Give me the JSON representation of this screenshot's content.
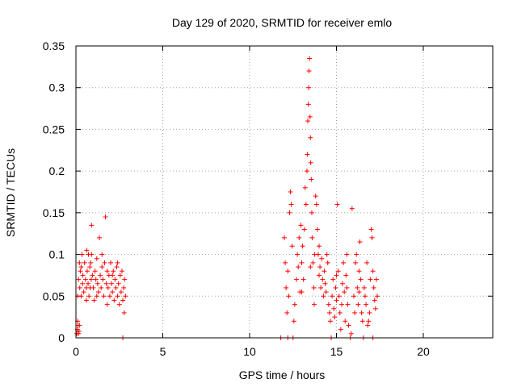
{
  "chart_data": {
    "type": "scatter",
    "title": "Day 129 of 2020, SRMTID for receiver emlo",
    "xlabel": "GPS time / hours",
    "ylabel": "SRMTID / TECUs",
    "xlim": [
      0,
      24
    ],
    "ylim": [
      0,
      0.35
    ],
    "xticks": [
      0,
      5,
      10,
      15,
      20
    ],
    "yticks": [
      0,
      0.05,
      0.1,
      0.15,
      0.2,
      0.25,
      0.3,
      0.35
    ],
    "xtick_labels": [
      "0",
      "5",
      "10",
      "15",
      "20"
    ],
    "ytick_labels": [
      "0",
      "0.05",
      "0.1",
      "0.15",
      "0.2",
      "0.25",
      "0.3",
      "0.35"
    ],
    "grid": true,
    "marker": "+",
    "color": "#ff0000",
    "series": [
      {
        "name": "SRMTID",
        "points": [
          [
            0.05,
            0.005
          ],
          [
            0.08,
            0.01
          ],
          [
            0.1,
            0.02
          ],
          [
            0.12,
            0.015
          ],
          [
            0.15,
            0.005
          ],
          [
            0.18,
            0.008
          ],
          [
            0.2,
            0.015
          ],
          [
            0.1,
            0.05
          ],
          [
            0.15,
            0.07
          ],
          [
            0.2,
            0.09
          ],
          [
            0.22,
            0.06
          ],
          [
            0.25,
            0.08
          ],
          [
            0.3,
            0.05
          ],
          [
            0.35,
            0.1
          ],
          [
            0.38,
            0.065
          ],
          [
            0.4,
            0.075
          ],
          [
            0.45,
            0.055
          ],
          [
            0.5,
            0.09
          ],
          [
            0.55,
            0.07
          ],
          [
            0.6,
            0.06
          ],
          [
            0.62,
            0.105
          ],
          [
            0.65,
            0.08
          ],
          [
            0.7,
            0.065
          ],
          [
            0.72,
            0.1
          ],
          [
            0.75,
            0.05
          ],
          [
            0.8,
            0.085
          ],
          [
            0.82,
            0.06
          ],
          [
            0.85,
            0.09
          ],
          [
            0.88,
            0.07
          ],
          [
            0.9,
            0.135
          ],
          [
            0.95,
            0.075
          ],
          [
            1.0,
            0.06
          ],
          [
            1.05,
            0.045
          ],
          [
            1.1,
            0.08
          ],
          [
            1.15,
            0.07
          ],
          [
            1.2,
            0.095
          ],
          [
            1.25,
            0.065
          ],
          [
            1.3,
            0.055
          ],
          [
            1.35,
            0.12
          ],
          [
            1.4,
            0.075
          ],
          [
            1.45,
            0.06
          ],
          [
            1.5,
            0.085
          ],
          [
            1.55,
            0.07
          ],
          [
            1.6,
            0.05
          ],
          [
            1.65,
            0.09
          ],
          [
            1.7,
            0.145
          ],
          [
            1.75,
            0.065
          ],
          [
            1.8,
            0.08
          ],
          [
            1.85,
            0.06
          ],
          [
            1.9,
            0.075
          ],
          [
            1.95,
            0.05
          ],
          [
            2.0,
            0.09
          ],
          [
            2.05,
            0.065
          ],
          [
            2.1,
            0.055
          ],
          [
            2.15,
            0.08
          ],
          [
            2.2,
            0.045
          ],
          [
            2.25,
            0.07
          ],
          [
            2.3,
            0.06
          ],
          [
            2.35,
            0.085
          ],
          [
            2.4,
            0.05
          ],
          [
            2.45,
            0.065
          ],
          [
            2.5,
            0.04
          ],
          [
            2.55,
            0.075
          ],
          [
            2.6,
            0.055
          ],
          [
            2.65,
            0.08
          ],
          [
            2.7,
            0.045
          ],
          [
            2.75,
            0.06
          ],
          [
            2.78,
            0.03
          ],
          [
            2.8,
            0.07
          ],
          [
            2.85,
            0.05
          ],
          [
            0.3,
            0.085
          ],
          [
            0.6,
            0.045
          ],
          [
            0.9,
            0.1
          ],
          [
            1.2,
            0.05
          ],
          [
            1.5,
            0.1
          ],
          [
            1.8,
            0.04
          ],
          [
            2.1,
            0.075
          ],
          [
            2.4,
            0.09
          ],
          [
            2.7,
            0.0
          ],
          [
            11.8,
            0.0
          ],
          [
            12.0,
            0.12
          ],
          [
            12.05,
            0.09
          ],
          [
            12.1,
            0.06
          ],
          [
            12.15,
            0.03
          ],
          [
            12.2,
            0.08
          ],
          [
            12.25,
            0.05
          ],
          [
            12.3,
            0.15
          ],
          [
            12.35,
            0.175
          ],
          [
            12.4,
            0.16
          ],
          [
            12.45,
            0.11
          ],
          [
            12.5,
            0.0
          ],
          [
            12.55,
            0.02
          ],
          [
            12.6,
            0.04
          ],
          [
            12.7,
            0.07
          ],
          [
            12.75,
            0.1
          ],
          [
            12.8,
            0.085
          ],
          [
            12.85,
            0.12
          ],
          [
            12.9,
            0.055
          ],
          [
            12.95,
            0.135
          ],
          [
            13.0,
            0.09
          ],
          [
            13.05,
            0.11
          ],
          [
            13.1,
            0.07
          ],
          [
            13.15,
            0.13
          ],
          [
            13.2,
            0.18
          ],
          [
            13.25,
            0.16
          ],
          [
            13.3,
            0.2
          ],
          [
            13.32,
            0.22
          ],
          [
            13.35,
            0.26
          ],
          [
            13.38,
            0.28
          ],
          [
            13.4,
            0.3
          ],
          [
            13.42,
            0.32
          ],
          [
            13.45,
            0.335
          ],
          [
            13.48,
            0.265
          ],
          [
            13.5,
            0.24
          ],
          [
            13.52,
            0.21
          ],
          [
            13.55,
            0.19
          ],
          [
            13.58,
            0.15
          ],
          [
            13.6,
            0.12
          ],
          [
            13.65,
            0.09
          ],
          [
            13.7,
            0.06
          ],
          [
            13.72,
            0.04
          ],
          [
            13.75,
            0.1
          ],
          [
            13.8,
            0.17
          ],
          [
            13.85,
            0.16
          ],
          [
            13.9,
            0.13
          ],
          [
            13.95,
            0.1
          ],
          [
            14.0,
            0.075
          ],
          [
            14.05,
            0.085
          ],
          [
            14.1,
            0.06
          ],
          [
            14.15,
            0.095
          ],
          [
            14.2,
            0.07
          ],
          [
            14.25,
            0.05
          ],
          [
            14.3,
            0.08
          ],
          [
            14.35,
            0.065
          ],
          [
            14.4,
            0.055
          ],
          [
            14.5,
            0.09
          ],
          [
            14.55,
            0.04
          ],
          [
            14.6,
            0.03
          ],
          [
            14.65,
            0.02
          ],
          [
            14.7,
            0.0
          ],
          [
            14.75,
            0.05
          ],
          [
            14.8,
            0.07
          ],
          [
            14.85,
            0.035
          ],
          [
            14.9,
            0.025
          ],
          [
            14.95,
            0.06
          ],
          [
            15.0,
            0.045
          ],
          [
            15.05,
            0.16
          ],
          [
            15.1,
            0.08
          ],
          [
            15.15,
            0.05
          ],
          [
            15.2,
            0.03
          ],
          [
            15.25,
            0.01
          ],
          [
            15.3,
            0.04
          ],
          [
            15.35,
            0.065
          ],
          [
            15.4,
            0.09
          ],
          [
            15.45,
            0.055
          ],
          [
            15.5,
            0.02
          ],
          [
            15.55,
            0.075
          ],
          [
            15.6,
            0.06
          ],
          [
            15.65,
            0.04
          ],
          [
            15.7,
            0.015
          ],
          [
            15.8,
            0.0
          ],
          [
            15.85,
            0.005
          ],
          [
            15.9,
            0.155
          ],
          [
            16.0,
            0.05
          ],
          [
            16.05,
            0.03
          ],
          [
            16.1,
            0.09
          ],
          [
            16.15,
            0.1
          ],
          [
            16.2,
            0.06
          ],
          [
            16.25,
            0.04
          ],
          [
            16.3,
            0.08
          ],
          [
            16.35,
            0.115
          ],
          [
            16.4,
            0.07
          ],
          [
            16.45,
            0.03
          ],
          [
            16.5,
            0.02
          ],
          [
            16.55,
            0.0
          ],
          [
            16.6,
            0.06
          ],
          [
            16.65,
            0.05
          ],
          [
            16.7,
            0.04
          ],
          [
            16.75,
            0.09
          ],
          [
            16.8,
            0.015
          ],
          [
            16.85,
            0.02
          ],
          [
            16.9,
            0.03
          ],
          [
            16.95,
            0.07
          ],
          [
            17.0,
            0.13
          ],
          [
            17.05,
            0.12
          ],
          [
            17.1,
            0.08
          ],
          [
            17.15,
            0.06
          ],
          [
            17.2,
            0.045
          ],
          [
            17.25,
            0.035
          ],
          [
            17.3,
            0.07
          ],
          [
            17.35,
            0.05
          ],
          [
            17.1,
            0.0
          ],
          [
            12.2,
            0.0
          ],
          [
            13.0,
            0.055
          ],
          [
            13.5,
            0.085
          ],
          [
            14.0,
            0.11
          ],
          [
            14.45,
            0.1
          ],
          [
            15.0,
            0.075
          ],
          [
            15.6,
            0.1
          ],
          [
            16.3,
            0.055
          ]
        ]
      }
    ]
  }
}
